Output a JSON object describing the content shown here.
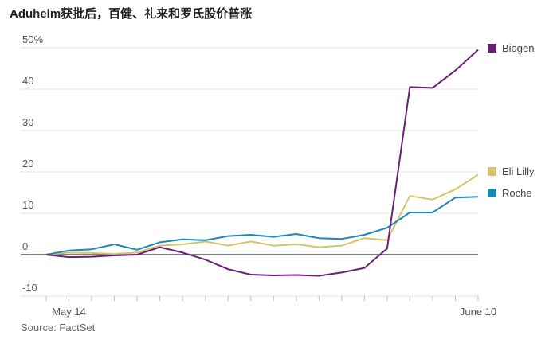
{
  "title": "Aduhelm获批后，百健、礼来和罗氏股价普涨",
  "source": "Source: FactSet",
  "chart_data": {
    "type": "line",
    "y_unit": "%",
    "ylim": [
      -10,
      50
    ],
    "yticks": [
      -10,
      0,
      10,
      20,
      30,
      40,
      50
    ],
    "ytick_labels": [
      "-10",
      "0",
      "10",
      "20",
      "30",
      "40",
      "50%"
    ],
    "x_label_first": "May 14",
    "x_label_last": "June 10",
    "grid": true,
    "legend_position": "right",
    "x": [
      0,
      1,
      2,
      3,
      4,
      5,
      6,
      7,
      8,
      9,
      10,
      11,
      12,
      13,
      14,
      15,
      16,
      17,
      18,
      19
    ],
    "series": [
      {
        "name": "Biogen",
        "color": "#6b1f7b",
        "values": [
          0,
          -0.6,
          -0.5,
          -0.2,
          0,
          1.8,
          0.5,
          -1.2,
          -3.5,
          -4.8,
          -5.0,
          -4.9,
          -5.1,
          -4.3,
          -3.2,
          1.5,
          40.5,
          40.3,
          44.5,
          49.5
        ]
      },
      {
        "name": "Eli Lilly",
        "color": "#d4c46a",
        "values": [
          0,
          0.5,
          0.4,
          0.2,
          0.5,
          2.2,
          2.5,
          3.2,
          2.2,
          3.2,
          2.2,
          2.5,
          1.8,
          2.2,
          4.0,
          3.5,
          14.2,
          13.3,
          15.8,
          19.3
        ]
      },
      {
        "name": "Roche",
        "color": "#1b88b5",
        "values": [
          0,
          1.0,
          1.3,
          2.5,
          1.2,
          3.0,
          3.7,
          3.5,
          4.5,
          4.8,
          4.3,
          5.0,
          4.0,
          3.8,
          4.8,
          6.5,
          10.2,
          10.2,
          13.8,
          14.0
        ]
      }
    ]
  }
}
